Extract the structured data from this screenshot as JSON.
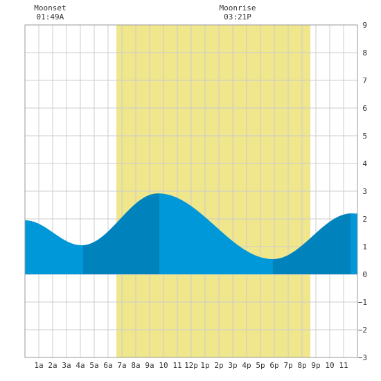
{
  "chart_data": {
    "type": "area",
    "title": "",
    "xlabel": "",
    "ylabel": "",
    "x_ticks": [
      "1a",
      "2a",
      "3a",
      "4a",
      "5a",
      "6a",
      "7a",
      "8a",
      "9a",
      "10",
      "11",
      "12p",
      "1p",
      "2p",
      "3p",
      "4p",
      "5p",
      "6p",
      "7p",
      "8p",
      "9p",
      "10",
      "11"
    ],
    "xlim_hours": [
      0,
      24
    ],
    "ylim": [
      -3,
      9
    ],
    "y_ticks": [
      -3,
      -2,
      -1,
      0,
      1,
      2,
      3,
      4,
      5,
      6,
      7,
      8,
      9
    ],
    "grid": true,
    "daylight": {
      "start_hour": 6.6,
      "end_hour": 20.6,
      "color": "#f0e68c"
    },
    "tide_extrema": [
      {
        "hour": 0.0,
        "height": 1.95
      },
      {
        "hour": 4.1,
        "height": 1.05
      },
      {
        "hour": 9.6,
        "height": 2.92
      },
      {
        "hour": 17.9,
        "height": 0.55
      },
      {
        "hour": 23.6,
        "height": 2.2
      },
      {
        "hour": 24.0,
        "height": 2.19
      }
    ],
    "shade_boundaries_hours": [
      4.2,
      9.7,
      17.9,
      23.5
    ],
    "colors": {
      "light": "#0098d8",
      "dark": "#0082bd"
    },
    "annotations": [
      {
        "label": "Moonset",
        "time": "01:49A",
        "hour": 1.82
      },
      {
        "label": "Moonrise",
        "time": "03:21P",
        "hour": 15.35
      }
    ]
  }
}
